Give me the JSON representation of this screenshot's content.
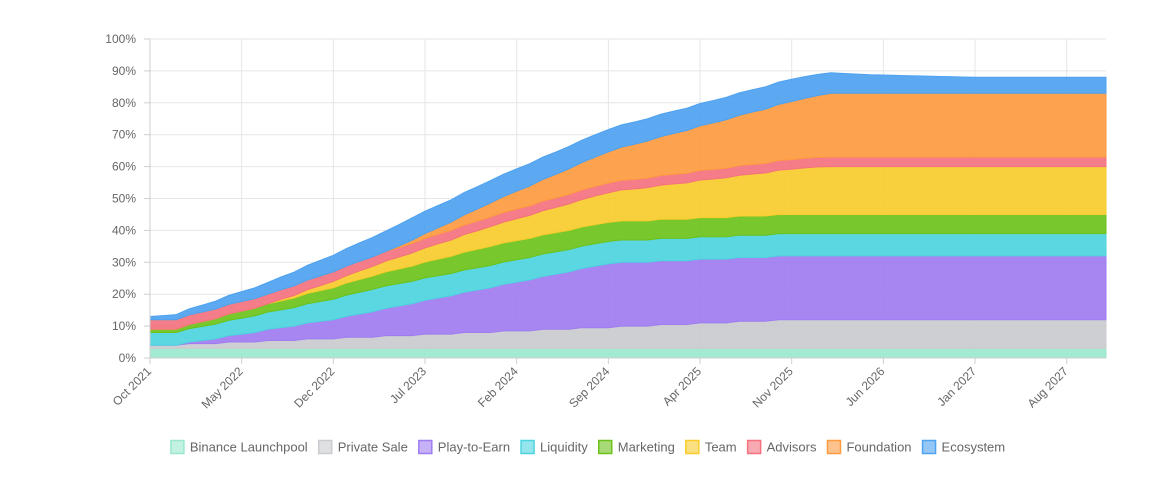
{
  "chart_data": {
    "type": "area",
    "stacked": true,
    "x": [
      "Oct 2021",
      "Nov 2021",
      "Dec 2021",
      "Jan 2022",
      "Feb 2022",
      "Mar 2022",
      "Apr 2022",
      "May 2022",
      "Jun 2022",
      "Jul 2022",
      "Aug 2022",
      "Sep 2022",
      "Oct 2022",
      "Nov 2022",
      "Dec 2022",
      "Jan 2023",
      "Feb 2023",
      "Mar 2023",
      "Apr 2023",
      "May 2023",
      "Jun 2023",
      "Jul 2023",
      "Aug 2023",
      "Sep 2023",
      "Oct 2023",
      "Nov 2023",
      "Dec 2023",
      "Jan 2024",
      "Feb 2024",
      "Mar 2024",
      "Apr 2024",
      "May 2024",
      "Jun 2024",
      "Jul 2024",
      "Aug 2024",
      "Sep 2024",
      "Oct 2024",
      "Nov 2024",
      "Dec 2024",
      "Jan 2025",
      "Feb 2025",
      "Mar 2025",
      "Apr 2025",
      "May 2025",
      "Jun 2025",
      "Jul 2025",
      "Aug 2025",
      "Sep 2025",
      "Oct 2025",
      "Nov 2025",
      "Dec 2025",
      "Jan 2026",
      "Feb 2026",
      "Mar 2026",
      "Apr 2026",
      "May 2026",
      "Jun 2026",
      "Jul 2026",
      "Aug 2026",
      "Sep 2026",
      "Oct 2026",
      "Nov 2026",
      "Dec 2026",
      "Jan 2027",
      "Feb 2027",
      "Mar 2027",
      "Apr 2027",
      "May 2027",
      "Jun 2027",
      "Jul 2027",
      "Aug 2027",
      "Sep 2027",
      "Oct 2027",
      "Nov 2027"
    ],
    "x_tick_labels": [
      "Oct 2021",
      "May 2022",
      "Dec 2022",
      "Jul 2023",
      "Feb 2024",
      "Sep 2024",
      "Apr 2025",
      "Nov 2025",
      "Jun 2026",
      "Jan 2027",
      "Aug 2027"
    ],
    "y_tick_labels": [
      "0%",
      "10%",
      "20%",
      "30%",
      "40%",
      "50%",
      "60%",
      "70%",
      "80%",
      "90%",
      "100%"
    ],
    "ylim": [
      0,
      100
    ],
    "y_unit": "%",
    "title": "",
    "xlabel": "",
    "ylabel": "",
    "grid": true,
    "legend_position": "bottom",
    "series": [
      {
        "name": "Binance Launchpool",
        "color": "#9be8cf",
        "values": [
          3,
          3,
          3,
          3,
          3,
          3,
          3,
          3,
          3,
          3,
          3,
          3,
          3,
          3,
          3,
          3,
          3,
          3,
          3,
          3,
          3,
          3,
          3,
          3,
          3,
          3,
          3,
          3,
          3,
          3,
          3,
          3,
          3,
          3,
          3,
          3,
          3,
          3,
          3,
          3,
          3,
          3,
          3,
          3,
          3,
          3,
          3,
          3,
          3,
          3,
          3,
          3,
          3,
          3,
          3,
          3,
          3,
          3,
          3,
          3,
          3,
          3,
          3,
          3,
          3,
          3,
          3,
          3,
          3,
          3,
          3,
          3,
          3,
          3
        ]
      },
      {
        "name": "Private Sale",
        "color": "#c9cbcf",
        "values": [
          1,
          1,
          1,
          1.5,
          1.5,
          1.5,
          2,
          2,
          2,
          2.5,
          2.5,
          2.5,
          3,
          3,
          3,
          3.5,
          3.5,
          3.5,
          4,
          4,
          4,
          4.5,
          4.5,
          4.5,
          5,
          5,
          5,
          5.5,
          5.5,
          5.5,
          6,
          6,
          6,
          6.5,
          6.5,
          6.5,
          7,
          7,
          7,
          7.5,
          7.5,
          7.5,
          8,
          8,
          8,
          8.5,
          8.5,
          8.5,
          9,
          9,
          9,
          9,
          9,
          9,
          9,
          9,
          9,
          9,
          9,
          9,
          9,
          9,
          9,
          9,
          9,
          9,
          9,
          9,
          9,
          9,
          9,
          9,
          9,
          9
        ]
      },
      {
        "name": "Play-to-Earn",
        "color": "#a07cf1",
        "values": [
          0,
          0,
          0,
          0.5,
          1,
          1.5,
          2,
          2.5,
          3,
          3.5,
          4,
          4.5,
          5,
          5.5,
          6,
          6.6,
          7.3,
          8,
          8.6,
          9.3,
          10,
          10.6,
          11.3,
          12,
          12.6,
          13.3,
          14,
          14.6,
          15.3,
          16,
          16.6,
          17.3,
          18,
          18.6,
          19.3,
          20,
          20,
          20,
          20,
          20,
          20,
          20,
          20,
          20,
          20,
          20,
          20,
          20,
          20,
          20,
          20,
          20,
          20,
          20,
          20,
          20,
          20,
          20,
          20,
          20,
          20,
          20,
          20,
          20,
          20,
          20,
          20,
          20,
          20,
          20,
          20,
          20,
          20,
          20
        ]
      },
      {
        "name": "Liquidity",
        "color": "#4dd4df",
        "values": [
          4,
          4,
          4,
          4.2,
          4.4,
          4.6,
          4.8,
          5,
          5.2,
          5.4,
          5.6,
          5.8,
          6,
          6.2,
          6.4,
          6.6,
          6.8,
          7,
          7,
          7,
          7,
          7,
          7,
          7,
          7,
          7,
          7,
          7,
          7,
          7,
          7,
          7,
          7,
          7,
          7,
          7,
          7,
          7,
          7,
          7,
          7,
          7,
          7,
          7,
          7,
          7,
          7,
          7,
          7,
          7,
          7,
          7,
          7,
          7,
          7,
          7,
          7,
          7,
          7,
          7,
          7,
          7,
          7,
          7,
          7,
          7,
          7,
          7,
          7,
          7,
          7,
          7,
          7,
          7
        ]
      },
      {
        "name": "Marketing",
        "color": "#6cc21b",
        "values": [
          1,
          1,
          1,
          1.3,
          1.5,
          1.7,
          2,
          2.2,
          2.4,
          2.6,
          2.8,
          3,
          3.2,
          3.4,
          3.6,
          3.8,
          4,
          4.2,
          4.4,
          4.6,
          4.8,
          5,
          5.2,
          5.4,
          5.6,
          5.8,
          6,
          6,
          6,
          6,
          6,
          6,
          6,
          6,
          6,
          6,
          6,
          6,
          6,
          6,
          6,
          6,
          6,
          6,
          6,
          6,
          6,
          6,
          6,
          6,
          6,
          6,
          6,
          6,
          6,
          6,
          6,
          6,
          6,
          6,
          6,
          6,
          6,
          6,
          6,
          6,
          6,
          6,
          6,
          6,
          6,
          6,
          6,
          6
        ]
      },
      {
        "name": "Team",
        "color": "#f7cc2c",
        "values": [
          0,
          0,
          0,
          0,
          0,
          0,
          0,
          0,
          0,
          0,
          0.5,
          0.8,
          1.2,
          1.6,
          2,
          2.3,
          2.7,
          3,
          3.4,
          3.7,
          4.1,
          4.4,
          4.8,
          5.1,
          5.5,
          5.8,
          6.2,
          6.5,
          6.9,
          7.2,
          7.6,
          7.9,
          8.3,
          8.6,
          9,
          9.3,
          9.7,
          10,
          10.4,
          10.7,
          11.1,
          11.4,
          11.8,
          12.1,
          12.5,
          12.8,
          13.2,
          13.5,
          13.9,
          14.2,
          14.6,
          14.9,
          15,
          15,
          15,
          15,
          15,
          15,
          15,
          15,
          15,
          15,
          15,
          15,
          15,
          15,
          15,
          15,
          15,
          15,
          15,
          15,
          15,
          15
        ]
      },
      {
        "name": "Advisors",
        "color": "#f4727f",
        "values": [
          3,
          3,
          3,
          3,
          3,
          3,
          3,
          3,
          3,
          3,
          3,
          3,
          3,
          3,
          3,
          3,
          3,
          3,
          3,
          3,
          3,
          3,
          3,
          3,
          3,
          3,
          3,
          3,
          3,
          3,
          3,
          3,
          3,
          3,
          3,
          3,
          3,
          3,
          3,
          3,
          3,
          3,
          3,
          3,
          3,
          3,
          3,
          3,
          3,
          3,
          3,
          3,
          3,
          3,
          3,
          3,
          3,
          3,
          3,
          3,
          3,
          3,
          3,
          3,
          3,
          3,
          3,
          3,
          3,
          3,
          3,
          3,
          3,
          3
        ]
      },
      {
        "name": "Foundation",
        "color": "#fd9b40",
        "values": [
          0,
          0,
          0,
          0,
          0,
          0,
          0,
          0,
          0,
          0,
          0,
          0,
          0,
          0,
          0,
          0,
          0,
          0,
          0,
          0.5,
          1,
          1.5,
          2,
          2.6,
          3.2,
          3.8,
          4.4,
          5,
          5.6,
          6.2,
          6.8,
          7.4,
          8,
          8.6,
          9.2,
          9.8,
          10.4,
          11,
          11.6,
          12.2,
          12.8,
          13.4,
          14,
          14.6,
          15.2,
          15.8,
          16.4,
          17,
          17.6,
          18.2,
          18.8,
          19.4,
          20,
          20,
          20,
          20,
          20,
          20,
          20,
          20,
          20,
          20,
          20,
          20,
          20,
          20,
          20,
          20,
          20,
          20,
          20,
          20,
          20,
          20
        ]
      },
      {
        "name": "Ecosystem",
        "color": "#4ea2f0",
        "values": [
          1,
          1.3,
          1.6,
          1.9,
          2.2,
          2.5,
          2.8,
          3.1,
          3.4,
          3.7,
          4,
          4.3,
          4.6,
          4.9,
          5.2,
          5.5,
          5.8,
          6.1,
          6.4,
          6.7,
          7,
          7,
          7,
          7,
          7,
          7,
          7,
          7,
          7,
          7,
          7,
          7,
          7,
          7,
          7,
          7,
          7,
          7,
          7,
          7,
          7,
          7,
          7,
          7,
          7,
          7,
          7,
          7,
          7,
          7,
          6.8,
          6.6,
          6.4,
          6.2,
          6,
          5.8,
          5.7,
          5.6,
          5.5,
          5.4,
          5.3,
          5.2,
          5.1,
          5,
          5,
          5,
          5,
          5,
          5,
          5,
          5,
          5,
          5,
          5
        ]
      }
    ]
  }
}
